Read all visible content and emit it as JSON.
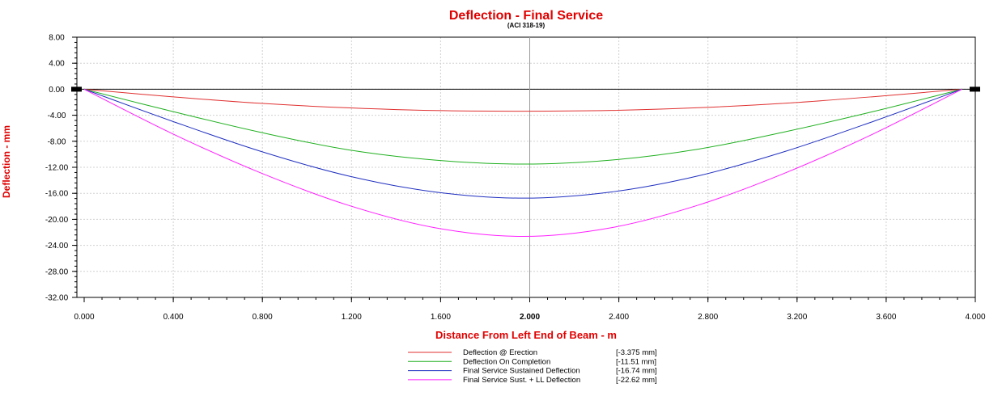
{
  "chart_data": {
    "type": "line",
    "title": "Deflection - Final Service",
    "subtitle": "(ACI 318-19)",
    "xlabel": "Distance From Left End of Beam - m",
    "ylabel": "Deflection - mm",
    "xlim": [
      0,
      4
    ],
    "ylim": [
      -32,
      8
    ],
    "x_ticks": [
      "0.000",
      "0.400",
      "0.800",
      "1.200",
      "1.600",
      "2.000",
      "2.400",
      "2.800",
      "3.200",
      "3.600",
      "4.000"
    ],
    "y_ticks": [
      "8.00",
      "4.00",
      "0.00",
      "-4.00",
      "-8.00",
      "-12.00",
      "-16.00",
      "-20.00",
      "-24.00",
      "-28.00",
      "-32.00"
    ],
    "grid": true,
    "cursor_x": 2.0,
    "supports_x": [
      0,
      3.94
    ],
    "series": [
      {
        "name": "Deflection @ Erection",
        "value_label": "[-3.375  mm]",
        "color": "#e03030",
        "x": [
          0,
          0.394,
          0.788,
          1.182,
          1.576,
          1.97,
          2.364,
          2.758,
          3.152,
          3.546,
          3.94
        ],
        "y": [
          0,
          -1.16,
          -2.16,
          -2.86,
          -3.28,
          -3.375,
          -3.26,
          -2.84,
          -2.14,
          -1.14,
          0
        ]
      },
      {
        "name": "Deflection On Completion",
        "value_label": "[-11.51  mm]",
        "color": "#20b020",
        "x": [
          0,
          0.394,
          0.788,
          1.182,
          1.576,
          1.97,
          2.364,
          2.758,
          3.152,
          3.546,
          3.94
        ],
        "y": [
          0,
          -3.4,
          -6.6,
          -9.3,
          -10.9,
          -11.51,
          -10.9,
          -9.2,
          -6.5,
          -3.4,
          0
        ]
      },
      {
        "name": "Final Service Sustained Deflection",
        "value_label": "[-16.74  mm]",
        "color": "#2030c0",
        "x": [
          0,
          0.394,
          0.788,
          1.182,
          1.576,
          1.97,
          2.364,
          2.758,
          3.152,
          3.546,
          3.94
        ],
        "y": [
          0,
          -4.9,
          -9.5,
          -13.3,
          -15.8,
          -16.74,
          -15.8,
          -13.3,
          -9.5,
          -4.9,
          0
        ]
      },
      {
        "name": "Final Service Sust. + LL Deflection",
        "value_label": "[-22.62  mm]",
        "color": "#ff20ff",
        "x": [
          0,
          0.394,
          0.788,
          1.182,
          1.576,
          1.97,
          2.364,
          2.758,
          3.152,
          3.546,
          3.94
        ],
        "y": [
          0,
          -6.8,
          -12.8,
          -17.8,
          -21.3,
          -22.62,
          -21.3,
          -17.8,
          -12.8,
          -6.8,
          0
        ]
      }
    ]
  }
}
